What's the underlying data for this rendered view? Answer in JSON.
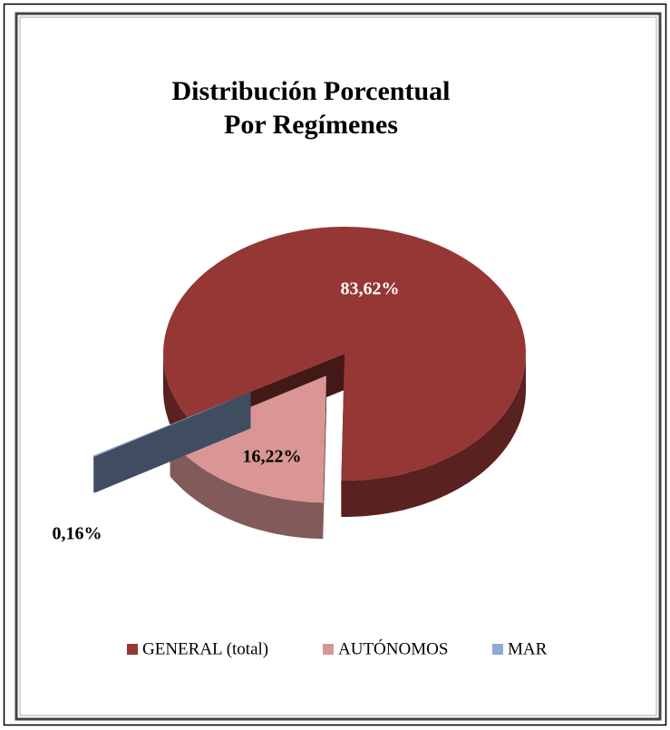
{
  "chart_data": {
    "type": "pie3d",
    "title": [
      "Distribución Porcentual",
      "Por Regímenes"
    ],
    "categories": [
      "GENERAL (total)",
      "AUTÓNOMOS",
      "MAR"
    ],
    "values": [
      83.62,
      16.22,
      0.16
    ],
    "value_labels": [
      "83,62%",
      "16,22%",
      "0,16%"
    ],
    "colors": [
      "#953735",
      "#d99694",
      "#8eaad6"
    ],
    "legend": "bottom"
  }
}
